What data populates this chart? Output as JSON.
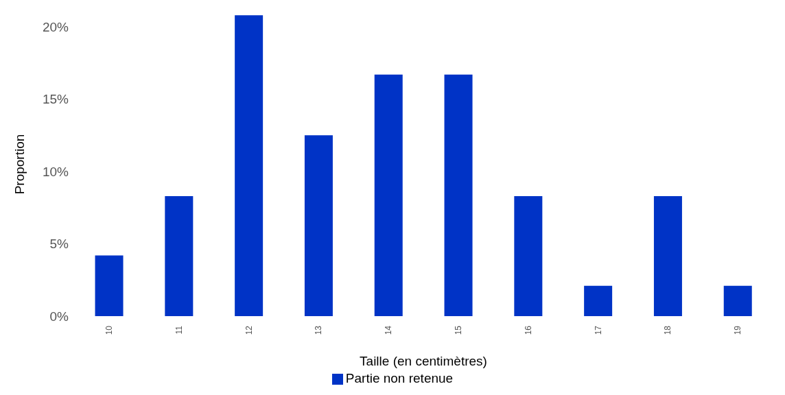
{
  "chart_data": {
    "type": "bar",
    "xlabel": "Taille (en centimètres)",
    "ylabel": "Proportion",
    "categories": [
      "10",
      "11",
      "12",
      "13",
      "14",
      "15",
      "16",
      "17",
      "18",
      "19"
    ],
    "series": [
      {
        "name": "Partie non retenue",
        "color": "#0033c6",
        "values": [
          4.2,
          8.3,
          20.8,
          12.5,
          16.7,
          16.7,
          8.3,
          2.1,
          8.3,
          2.1
        ]
      }
    ],
    "ylim": [
      0,
      21
    ],
    "yticks": [
      {
        "value": 0,
        "label": "0%"
      },
      {
        "value": 5,
        "label": "5%"
      },
      {
        "value": 10,
        "label": "10%"
      },
      {
        "value": 15,
        "label": "15%"
      },
      {
        "value": 20,
        "label": "20%"
      }
    ],
    "grid": false,
    "legend": "bottom"
  }
}
